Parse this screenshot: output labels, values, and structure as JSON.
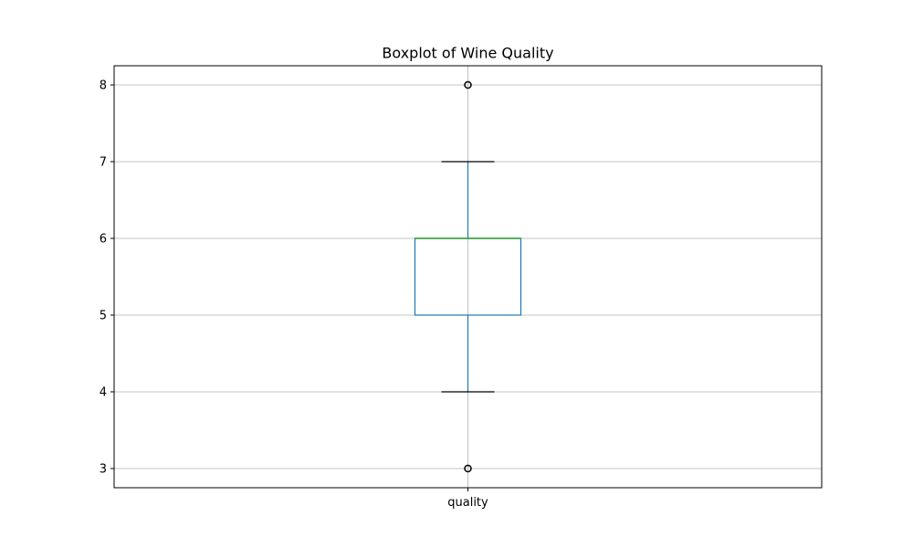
{
  "chart_data": {
    "type": "boxplot",
    "title": "Boxplot of Wine Quality",
    "xlabel": "",
    "ylabel": "",
    "categories": [
      "quality"
    ],
    "ylim": [
      2.75,
      8.25
    ],
    "yticks": [
      3,
      4,
      5,
      6,
      7,
      8
    ],
    "grid": true,
    "boxes": [
      {
        "category": "quality",
        "whisker_low": 4,
        "q1": 5,
        "median": 6,
        "q3": 6,
        "whisker_high": 7,
        "outliers": [
          3,
          8
        ]
      }
    ],
    "colors": {
      "box": "#1f77b4",
      "median": "#2ca02c",
      "whisker_cap": "#000000",
      "outlier": "#000000",
      "grid": "#b0b0b0",
      "axes": "#000000"
    }
  }
}
